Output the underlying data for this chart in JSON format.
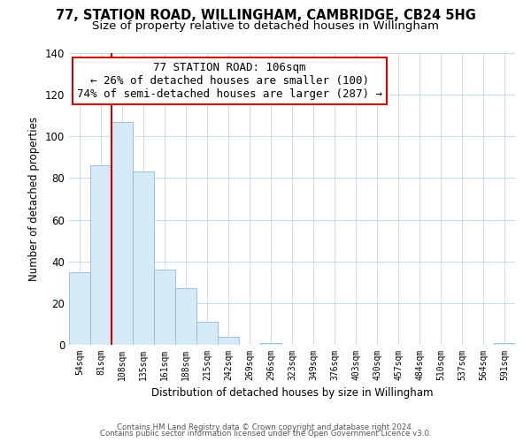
{
  "title": "77, STATION ROAD, WILLINGHAM, CAMBRIDGE, CB24 5HG",
  "subtitle": "Size of property relative to detached houses in Willingham",
  "xlabel": "Distribution of detached houses by size in Willingham",
  "ylabel": "Number of detached properties",
  "bar_labels": [
    "54sqm",
    "81sqm",
    "108sqm",
    "135sqm",
    "161sqm",
    "188sqm",
    "215sqm",
    "242sqm",
    "269sqm",
    "296sqm",
    "323sqm",
    "349sqm",
    "376sqm",
    "403sqm",
    "430sqm",
    "457sqm",
    "484sqm",
    "510sqm",
    "537sqm",
    "564sqm",
    "591sqm"
  ],
  "bar_heights": [
    35,
    86,
    107,
    83,
    36,
    27,
    11,
    4,
    0,
    1,
    0,
    0,
    0,
    0,
    0,
    0,
    0,
    0,
    0,
    0,
    1
  ],
  "bar_color": "#d6e9f7",
  "bar_edge_color": "#90bcd8",
  "vline_color": "#cc0000",
  "annotation_title": "77 STATION ROAD: 106sqm",
  "annotation_line1": "← 26% of detached houses are smaller (100)",
  "annotation_line2": "74% of semi-detached houses are larger (287) →",
  "annotation_box_color": "#ffffff",
  "annotation_box_edge": "#cc0000",
  "ylim": [
    0,
    140
  ],
  "yticks": [
    0,
    20,
    40,
    60,
    80,
    100,
    120,
    140
  ],
  "footer1": "Contains HM Land Registry data © Crown copyright and database right 2024.",
  "footer2": "Contains public sector information licensed under the Open Government Licence v3.0.",
  "background_color": "#ffffff",
  "grid_color": "#c8dced",
  "title_fontsize": 10.5,
  "subtitle_fontsize": 9.5,
  "ann_fontsize": 9.0
}
